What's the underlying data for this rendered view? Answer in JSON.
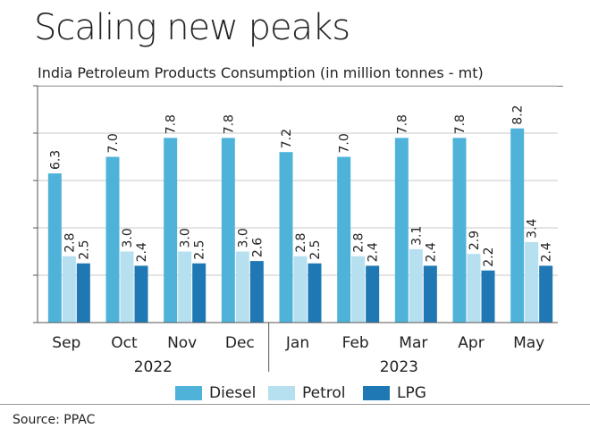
{
  "title": "Scaling new peaks",
  "subtitle": "India Petroleum Products Consumption (in million tonnes - mt)",
  "source": "Source: PPAC",
  "colors": {
    "Diesel": "#4fb3d9",
    "Petrol": "#b6dff0",
    "LPG": "#1f78b4"
  },
  "chart_data": {
    "type": "bar",
    "categories": [
      "Sep",
      "Oct",
      "Nov",
      "Dec",
      "Jan",
      "Feb",
      "Mar",
      "Apr",
      "May"
    ],
    "year_groups": [
      {
        "label": "2022",
        "categories": [
          "Sep",
          "Oct",
          "Nov",
          "Dec"
        ]
      },
      {
        "label": "2023",
        "categories": [
          "Jan",
          "Feb",
          "Mar",
          "Apr",
          "May"
        ]
      }
    ],
    "series": [
      {
        "name": "Diesel",
        "values": [
          6.3,
          7.0,
          7.8,
          7.8,
          7.2,
          7.0,
          7.8,
          7.8,
          8.2
        ],
        "labels": [
          "6.3",
          "7.0",
          "7.8",
          "7.8",
          "7.2",
          "7.0",
          "7.8",
          "7.8",
          "8.2"
        ]
      },
      {
        "name": "Petrol",
        "values": [
          2.8,
          3.0,
          3.0,
          3.0,
          2.8,
          2.8,
          3.1,
          2.9,
          3.4
        ],
        "labels": [
          "2.8",
          "3.0",
          "3.0",
          "3.0",
          "2.8",
          "2.8",
          "3.1",
          "2.9",
          "3.4"
        ]
      },
      {
        "name": "LPG",
        "values": [
          2.5,
          2.4,
          2.5,
          2.6,
          2.5,
          2.4,
          2.4,
          2.2,
          2.4
        ],
        "labels": [
          "2.5",
          "2.4",
          "2.5",
          "2.6",
          "2.5",
          "2.4",
          "2.4",
          "2.2",
          "2.4"
        ]
      }
    ],
    "ylim": [
      0,
      10
    ],
    "yticks": [
      0,
      2,
      4,
      6,
      8,
      10
    ],
    "grid": true,
    "legend": "bottom"
  }
}
